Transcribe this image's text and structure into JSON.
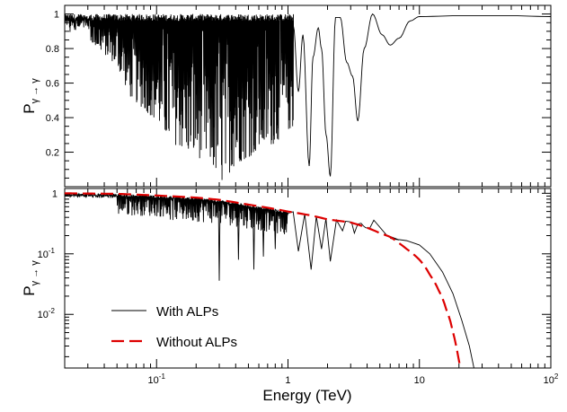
{
  "chart_data": [
    {
      "type": "line",
      "panel": "top",
      "ylabel": {
        "main": "P",
        "sub": "γ → γ"
      },
      "xscale": "log",
      "yscale": "linear",
      "xlim": [
        0.02,
        100
      ],
      "ylim": [
        0,
        1.05
      ],
      "yticks": [
        0.2,
        0.4,
        0.6,
        0.8,
        1
      ],
      "ytick_labels": [
        "0.2",
        "0.4",
        "0.6",
        "0.8",
        "1"
      ],
      "series": [
        {
          "color": "#000000",
          "envelope": {
            "log10E": [
              -1.7,
              -1.5,
              -1.3,
              -1.2,
              -1.1,
              -1.0,
              -0.9,
              -0.8,
              -0.7,
              -0.6,
              -0.5,
              -0.4,
              -0.3,
              -0.2,
              -0.1,
              0.0
            ],
            "min": [
              0.9,
              0.84,
              0.7,
              0.52,
              0.45,
              0.38,
              0.26,
              0.22,
              0.17,
              0.15,
              0.02,
              0.13,
              0.17,
              0.22,
              0.25,
              0.33
            ]
          },
          "resolved_points": [
            [
              1.1,
              0.93
            ],
            [
              1.2,
              0.55
            ],
            [
              1.3,
              0.88
            ],
            [
              1.45,
              0.12
            ],
            [
              1.55,
              0.75
            ],
            [
              1.7,
              0.92
            ],
            [
              1.8,
              0.8
            ],
            [
              1.95,
              0.3
            ],
            [
              2.1,
              0.06
            ],
            [
              2.3,
              0.98
            ],
            [
              2.5,
              0.98
            ],
            [
              2.8,
              0.72
            ],
            [
              3.1,
              0.64
            ],
            [
              3.4,
              0.38
            ],
            [
              3.8,
              0.8
            ],
            [
              4.4,
              1.0
            ],
            [
              5.2,
              0.88
            ],
            [
              6.0,
              0.82
            ],
            [
              7.0,
              0.86
            ],
            [
              8.5,
              0.96
            ],
            [
              10,
              0.985
            ],
            [
              20,
              0.99
            ],
            [
              50,
              0.99
            ],
            [
              100,
              0.985
            ]
          ]
        }
      ]
    },
    {
      "type": "line",
      "panel": "bottom",
      "xlabel": "Energy (TeV)",
      "ylabel": {
        "main": "P",
        "sub": "γ → γ"
      },
      "xscale": "log",
      "yscale": "log",
      "xlim": [
        0.02,
        100
      ],
      "ylim": [
        0.0013,
        1.2
      ],
      "xticks": [
        0.1,
        1,
        10,
        100
      ],
      "xtick_labels": [
        {
          "base": "10",
          "exp": "-1"
        },
        {
          "base": "1",
          "exp": ""
        },
        {
          "base": "10",
          "exp": ""
        },
        {
          "base": "10",
          "exp": "2"
        }
      ],
      "yticks": [
        0.01,
        0.1,
        1
      ],
      "ytick_labels": [
        {
          "base": "10",
          "exp": "-2"
        },
        {
          "base": "10",
          "exp": "-1"
        },
        {
          "base": "1",
          "exp": ""
        }
      ],
      "legend": {
        "placement": "bottom-left"
      },
      "series": [
        {
          "name": "With ALPs",
          "color": "#000000",
          "dash": "solid",
          "dips": [
            [
              0.3,
              0.036
            ],
            [
              0.42,
              0.08
            ],
            [
              0.55,
              0.055
            ],
            [
              0.65,
              0.09
            ],
            [
              0.8,
              0.12
            ],
            [
              0.95,
              0.25
            ],
            [
              1.2,
              0.11
            ],
            [
              1.5,
              0.055
            ],
            [
              1.8,
              0.12
            ],
            [
              2.1,
              0.075
            ],
            [
              2.6,
              0.24
            ],
            [
              3.2,
              0.22
            ],
            [
              3.9,
              0.27
            ]
          ],
          "bumps": [
            [
              2.9,
              0.34
            ],
            [
              3.6,
              0.32
            ],
            [
              4.5,
              0.36
            ],
            [
              7,
              0.17
            ]
          ],
          "tail": [
            [
              6,
              0.18
            ],
            [
              8,
              0.165
            ],
            [
              10,
              0.14
            ],
            [
              12,
              0.1
            ],
            [
              15,
              0.05
            ],
            [
              18,
              0.022
            ],
            [
              21,
              0.008
            ],
            [
              24,
              0.003
            ],
            [
              26,
              0.0013
            ]
          ]
        },
        {
          "name": "Without ALPs",
          "color": "#dd0000",
          "dash": "long-dash",
          "points": [
            [
              0.02,
              1.0
            ],
            [
              0.05,
              0.98
            ],
            [
              0.1,
              0.92
            ],
            [
              0.2,
              0.85
            ],
            [
              0.3,
              0.78
            ],
            [
              0.5,
              0.65
            ],
            [
              1,
              0.5
            ],
            [
              1.5,
              0.43
            ],
            [
              2,
              0.37
            ],
            [
              3,
              0.33
            ],
            [
              4,
              0.27
            ],
            [
              5,
              0.22
            ],
            [
              6,
              0.19
            ],
            [
              7,
              0.15
            ],
            [
              8,
              0.12
            ],
            [
              10,
              0.08
            ],
            [
              12,
              0.045
            ],
            [
              14,
              0.025
            ],
            [
              16,
              0.012
            ],
            [
              18,
              0.005
            ],
            [
              19.5,
              0.0022
            ],
            [
              20.5,
              0.0013
            ]
          ]
        }
      ]
    }
  ]
}
